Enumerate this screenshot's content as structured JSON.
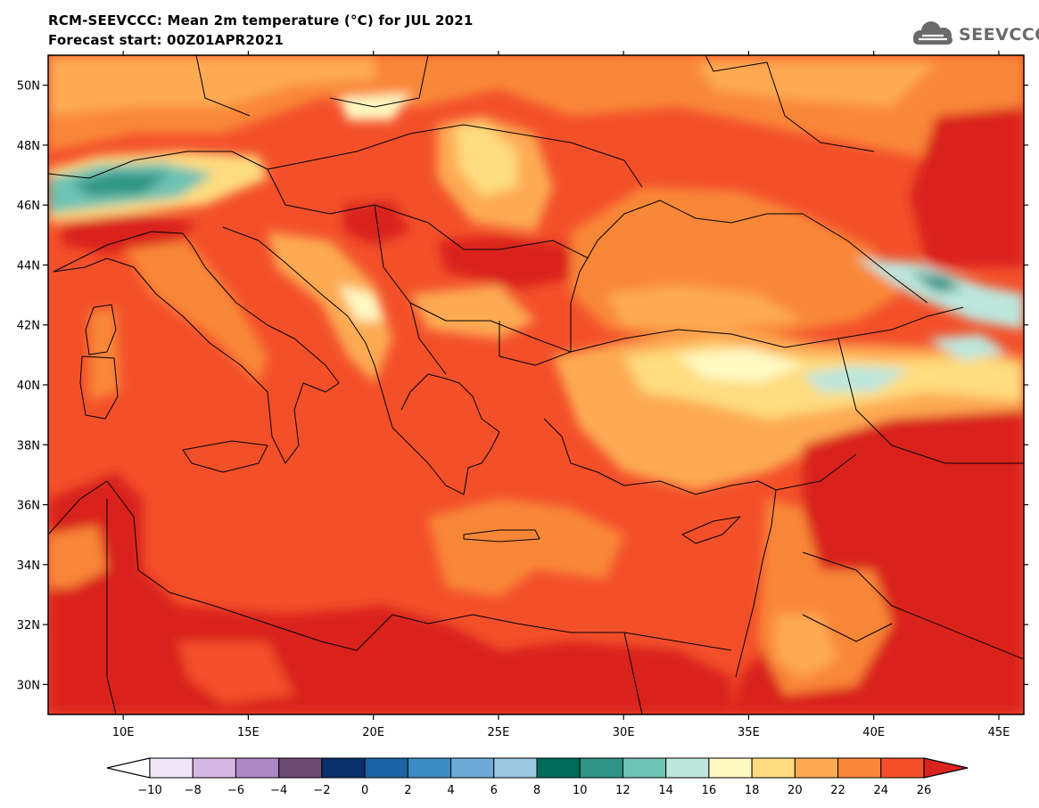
{
  "title": {
    "line1": "RCM-SEEVCCC: Mean 2m temperature (°C) for JUL 2021",
    "line2": "Forecast start: 00Z01APR2021"
  },
  "logo": {
    "text": "SEEVCCC",
    "icon": "cloud-icon"
  },
  "map": {
    "lat_labels": [
      "50N",
      "48N",
      "46N",
      "44N",
      "42N",
      "40N",
      "38N",
      "36N",
      "34N",
      "32N",
      "30N"
    ],
    "lon_labels": [
      "10E",
      "15E",
      "20E",
      "25E",
      "30E",
      "35E",
      "40E",
      "45E"
    ],
    "extent": {
      "lon": [
        7,
        46
      ],
      "lat": [
        29,
        51
      ]
    }
  },
  "colorbar": {
    "ticks": [
      "−10",
      "−8",
      "−6",
      "−4",
      "−2",
      "0",
      "2",
      "4",
      "6",
      "8",
      "10",
      "12",
      "14",
      "16",
      "18",
      "20",
      "22",
      "24",
      "26"
    ],
    "colors": [
      "#efe6f5",
      "#d6b6e4",
      "#ab88c5",
      "#6b4a70",
      "#08306b",
      "#1d62a4",
      "#3b8cc2",
      "#6daad5",
      "#9dc8e2",
      "#006b58",
      "#2f9485",
      "#70c3b3",
      "#bde6dc",
      "#fff9c2",
      "#fedc7f",
      "#fdaa52",
      "#f98739",
      "#f3502a"
    ],
    "under_color": "#ffffff",
    "over_color": "#d9241e"
  }
}
